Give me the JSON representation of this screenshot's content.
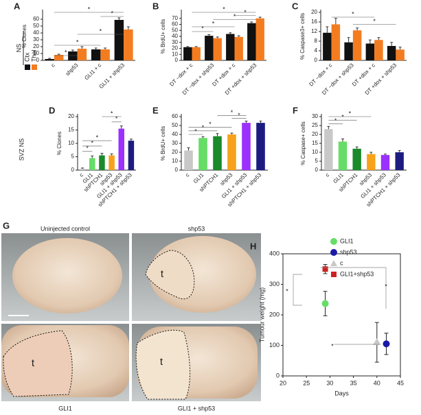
{
  "row_labels": [
    "NS",
    "SVZ NS"
  ],
  "images": {
    "panel": "G",
    "items": [
      {
        "caption": "Uninjected control"
      },
      {
        "caption": "shp53",
        "tumour": "t"
      },
      {
        "caption": "GLI1",
        "tumour": "t"
      },
      {
        "caption": "GLI1 + shp53",
        "tumour": "t"
      }
    ]
  },
  "chart_data": [
    {
      "type": "bar",
      "panel": "A",
      "ylabel": "% Clones",
      "categories": [
        "c",
        "shp53",
        "GLI1 + c",
        "GLI1 + shp53"
      ],
      "series": [
        {
          "name": "Ctx",
          "color": "#111111",
          "values": [
            2,
            13,
            16,
            59
          ],
          "errors": [
            1,
            2,
            2,
            3
          ]
        },
        {
          "name": "Thal",
          "color": "#f47c20",
          "values": [
            8,
            17,
            16,
            45
          ],
          "errors": [
            1,
            3,
            2,
            4
          ]
        }
      ],
      "ylim": [
        0,
        70
      ],
      "yticks": [
        0,
        10,
        20,
        30,
        40,
        50,
        60
      ],
      "annotations": [
        "*",
        "*",
        "*",
        "*",
        "*"
      ]
    },
    {
      "type": "bar",
      "panel": "B",
      "ylabel": "% BrdU+ cells",
      "categories": [
        "DT −dox + c",
        "DT −dox + shp53",
        "DT +dox + c",
        "DT +dox + shp53"
      ],
      "series": [
        {
          "name": "Ctx",
          "color": "#111111",
          "values": [
            22,
            41,
            44,
            62
          ],
          "errors": [
            1,
            2,
            2,
            2
          ]
        },
        {
          "name": "Thal",
          "color": "#f47c20",
          "values": [
            22,
            37,
            39,
            70
          ],
          "errors": [
            1,
            2,
            2,
            2
          ]
        }
      ],
      "ylim": [
        0,
        80
      ],
      "yticks": [
        0,
        10,
        20,
        30,
        40,
        50,
        60,
        70
      ],
      "annotations": [
        "*",
        "*",
        "*",
        "*",
        "*"
      ]
    },
    {
      "type": "bar",
      "panel": "C",
      "ylabel": "% Caspase3+ cells",
      "categories": [
        "DT −dox + c",
        "DT −dox + shp53",
        "DT +dox + c",
        "DT +dox + shp53"
      ],
      "series": [
        {
          "name": "Ctx",
          "color": "#111111",
          "values": [
            11.5,
            7.5,
            7,
            6
          ],
          "errors": [
            2.5,
            2,
            1.5,
            1.5
          ]
        },
        {
          "name": "Thal",
          "color": "#f47c20",
          "values": [
            15,
            12.5,
            8.5,
            4.5
          ],
          "errors": [
            2.5,
            1,
            1,
            1
          ]
        }
      ],
      "ylim": [
        0,
        20
      ],
      "yticks": [
        0,
        4,
        8,
        12,
        16,
        20
      ],
      "annotations": [
        "*",
        "*"
      ]
    },
    {
      "type": "bar",
      "panel": "D",
      "ylabel": "% Clones",
      "categories": [
        "c",
        "GLI1",
        "shPTCH1",
        "shp53",
        "GLI1 + shp53",
        "shPTCH1 + shp53"
      ],
      "values": [
        0.5,
        4.5,
        5.5,
        5.5,
        15.5,
        11
      ],
      "errors": [
        0.3,
        0.8,
        0.8,
        0.6,
        1,
        0.6
      ],
      "colors": [
        "#c8c8c8",
        "#66dd66",
        "#1a8a2a",
        "#f7a21a",
        "#9b30ff",
        "#1c1c80"
      ],
      "ylim": [
        0,
        20
      ],
      "yticks": [
        0,
        5,
        10,
        15,
        20
      ],
      "annotations": [
        "*",
        "*",
        "*",
        "*",
        "*"
      ]
    },
    {
      "type": "bar",
      "panel": "E",
      "ylabel": "% BrdU+ cells",
      "categories": [
        "c",
        "GLI1",
        "shPTCH1",
        "shp53",
        "GLI1 + shp53",
        "shPTCH1 + shp53"
      ],
      "values": [
        22,
        36,
        38,
        40,
        53,
        53
      ],
      "errors": [
        3,
        1.5,
        3,
        1.5,
        2,
        2
      ],
      "colors": [
        "#c8c8c8",
        "#66dd66",
        "#1a8a2a",
        "#f7a21a",
        "#9b30ff",
        "#1c1c80"
      ],
      "ylim": [
        0,
        60
      ],
      "yticks": [
        0,
        10,
        20,
        30,
        40,
        50,
        60
      ],
      "annotations": [
        "*",
        "*",
        "*",
        "*",
        "*"
      ]
    },
    {
      "type": "bar",
      "panel": "F",
      "ylabel": "% Caspase+ cells",
      "categories": [
        "c",
        "GLI1",
        "shPTCH1",
        "shp53",
        "GLI1 + shp53",
        "shPTCH1 + shp53"
      ],
      "values": [
        23,
        16,
        12,
        9,
        8.5,
        10
      ],
      "errors": [
        1.5,
        1.5,
        1,
        1,
        0.5,
        1
      ],
      "colors": [
        "#c8c8c8",
        "#66dd66",
        "#1a8a2a",
        "#f7a21a",
        "#9b30ff",
        "#1c1c80"
      ],
      "ylim": [
        0,
        30
      ],
      "yticks": [
        0,
        5,
        10,
        15,
        20,
        25,
        30
      ],
      "annotations": [
        "*",
        "*",
        "*"
      ]
    },
    {
      "type": "scatter",
      "panel": "H",
      "xlabel": "Days",
      "ylabel": "Tumour weight (mg)",
      "series": [
        {
          "name": "GLI1",
          "color": "#66dd66",
          "marker": "circle",
          "x": [
            29
          ],
          "values": [
            237
          ],
          "errors": [
            40
          ]
        },
        {
          "name": "shp53",
          "color": "#1a1aa8",
          "marker": "circle",
          "x": [
            42
          ],
          "values": [
            105
          ],
          "errors": [
            35
          ]
        },
        {
          "name": "c",
          "color": "#c8c8c8",
          "marker": "triangle",
          "x": [
            40
          ],
          "values": [
            110
          ],
          "errors": [
            65
          ]
        },
        {
          "name": "GLI1+shp53",
          "color": "#cc2222",
          "marker": "square",
          "x": [
            29
          ],
          "values": [
            350
          ],
          "errors": [
            15
          ]
        }
      ],
      "xlim": [
        20,
        45
      ],
      "xticks": [
        20,
        25,
        30,
        35,
        40,
        45
      ],
      "ylim": [
        0,
        400
      ],
      "yticks": [
        0,
        100,
        200,
        300,
        400
      ],
      "annotations": [
        "*",
        "*",
        "*"
      ]
    }
  ]
}
